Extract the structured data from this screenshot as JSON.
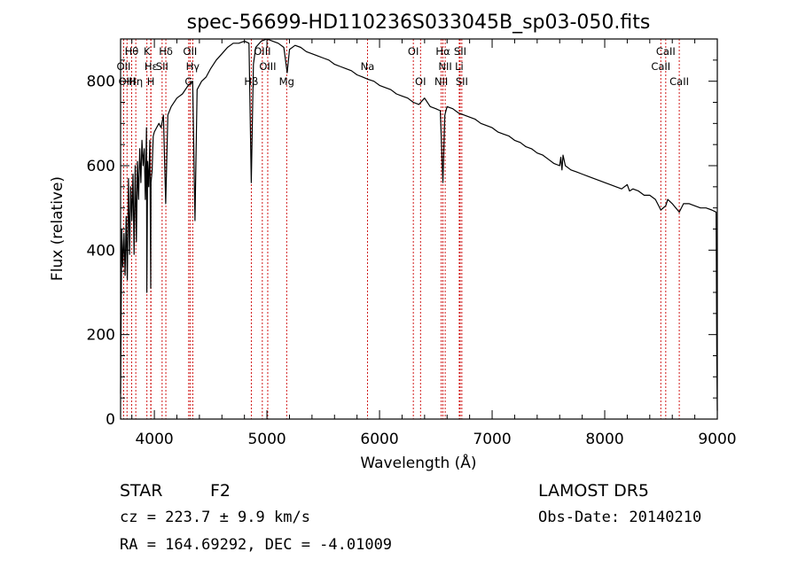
{
  "chart_data": {
    "type": "line",
    "title": "spec-56699-HD110236S033045B_sp03-050.fits",
    "xlabel": "Wavelength (Å)",
    "ylabel": "Flux (relative)",
    "xlim": [
      3700,
      9000
    ],
    "ylim": [
      0,
      900
    ],
    "x_ticks": [
      4000,
      5000,
      6000,
      7000,
      8000,
      9000
    ],
    "y_ticks": [
      0,
      200,
      400,
      600,
      800
    ],
    "grid": false,
    "series": [
      {
        "color": "#000000",
        "x": [
          3700,
          3710,
          3720,
          3730,
          3740,
          3750,
          3760,
          3770,
          3780,
          3790,
          3800,
          3810,
          3820,
          3830,
          3840,
          3850,
          3860,
          3870,
          3880,
          3890,
          3900,
          3910,
          3920,
          3930,
          3933,
          3940,
          3950,
          3960,
          3968,
          3970,
          3980,
          3990,
          4000,
          4020,
          4040,
          4060,
          4080,
          4101,
          4120,
          4150,
          4200,
          4250,
          4300,
          4340,
          4361,
          4380,
          4420,
          4460,
          4500,
          4550,
          4600,
          4650,
          4700,
          4750,
          4800,
          4840,
          4861,
          4880,
          4900,
          4950,
          5000,
          5050,
          5100,
          5150,
          5180,
          5200,
          5250,
          5300,
          5350,
          5400,
          5450,
          5500,
          5550,
          5600,
          5650,
          5700,
          5750,
          5800,
          5850,
          5893,
          5950,
          6000,
          6050,
          6100,
          6150,
          6200,
          6250,
          6300,
          6350,
          6400,
          6450,
          6500,
          6540,
          6563,
          6580,
          6600,
          6650,
          6700,
          6750,
          6800,
          6850,
          6900,
          6950,
          7000,
          7050,
          7100,
          7150,
          7200,
          7250,
          7300,
          7350,
          7400,
          7450,
          7500,
          7550,
          7600,
          7610,
          7620,
          7630,
          7650,
          7700,
          7750,
          7800,
          7850,
          7900,
          7950,
          8000,
          8050,
          8100,
          8150,
          8200,
          8220,
          8250,
          8300,
          8350,
          8400,
          8450,
          8498,
          8542,
          8560,
          8600,
          8662,
          8700,
          8750,
          8800,
          8850,
          8900,
          8950,
          8990,
          8995,
          9000
        ],
        "y": [
          60,
          450,
          360,
          440,
          340,
          480,
          330,
          570,
          390,
          550,
          470,
          580,
          390,
          600,
          420,
          610,
          520,
          640,
          560,
          660,
          600,
          640,
          520,
          690,
          300,
          610,
          550,
          660,
          310,
          560,
          590,
          670,
          680,
          690,
          700,
          690,
          720,
          510,
          720,
          740,
          760,
          770,
          790,
          800,
          470,
          780,
          800,
          810,
          830,
          850,
          865,
          880,
          890,
          890,
          895,
          890,
          560,
          840,
          880,
          895,
          900,
          895,
          890,
          880,
          820,
          875,
          885,
          880,
          870,
          865,
          860,
          855,
          850,
          840,
          835,
          830,
          825,
          815,
          810,
          805,
          800,
          790,
          785,
          780,
          770,
          765,
          760,
          750,
          745,
          760,
          740,
          735,
          730,
          560,
          720,
          740,
          735,
          725,
          720,
          715,
          710,
          700,
          695,
          690,
          680,
          675,
          670,
          660,
          655,
          645,
          640,
          630,
          625,
          615,
          605,
          600,
          620,
          590,
          625,
          600,
          590,
          585,
          580,
          575,
          570,
          565,
          560,
          555,
          550,
          545,
          555,
          540,
          545,
          540,
          530,
          530,
          520,
          495,
          505,
          520,
          510,
          490,
          510,
          510,
          505,
          500,
          500,
          495,
          490,
          150,
          20
        ]
      }
    ],
    "spectral_lines": [
      {
        "name": "Hθ",
        "x": 3798,
        "row": 1
      },
      {
        "name": "OII",
        "x": 3727,
        "row": 2
      },
      {
        "name": "OIII",
        "x": 3757,
        "row": 3
      },
      {
        "name": "Hη",
        "x": 3835,
        "row": 3
      },
      {
        "name": "K",
        "x": 3934,
        "row": 1
      },
      {
        "name": "Hε",
        "x": 3970,
        "row": 2
      },
      {
        "name": "H",
        "x": 3968,
        "row": 3
      },
      {
        "name": "Hδ",
        "x": 4102,
        "row": 1
      },
      {
        "name": "SII",
        "x": 4069,
        "row": 2
      },
      {
        "name": "OII",
        "x": 4317,
        "row": 1
      },
      {
        "name": "Hγ",
        "x": 4341,
        "row": 2
      },
      {
        "name": "G",
        "x": 4305,
        "row": 3
      },
      {
        "name": "OIII",
        "x": 4959,
        "row": 1
      },
      {
        "name": "OIII",
        "x": 5007,
        "row": 2
      },
      {
        "name": "Hβ",
        "x": 4861,
        "row": 3
      },
      {
        "name": "Mg",
        "x": 5175,
        "row": 3
      },
      {
        "name": "Na",
        "x": 5893,
        "row": 2
      },
      {
        "name": "OI",
        "x": 6300,
        "row": 1
      },
      {
        "name": "OI",
        "x": 6364,
        "row": 3
      },
      {
        "name": "Hα",
        "x": 6563,
        "row": 1
      },
      {
        "name": "NII",
        "x": 6583,
        "row": 2
      },
      {
        "name": "NII",
        "x": 6548,
        "row": 3
      },
      {
        "name": "SII",
        "x": 6716,
        "row": 1
      },
      {
        "name": "Li",
        "x": 6708,
        "row": 2
      },
      {
        "name": "SII",
        "x": 6731,
        "row": 3
      },
      {
        "name": "CaII",
        "x": 8542,
        "row": 1
      },
      {
        "name": "CaII",
        "x": 8498,
        "row": 2
      },
      {
        "name": "CaII",
        "x": 8662,
        "row": 3
      }
    ]
  },
  "info": {
    "object_class": "STAR",
    "subclass": "F2",
    "survey": "LAMOST DR5",
    "cz": "cz = 223.7 ± 9.9 km/s",
    "obs_date": "Obs-Date: 20140210",
    "coords": "RA = 164.69292, DEC =  -4.01009"
  },
  "colors": {
    "spectrum": "#000000",
    "line_markers": "#cc0000"
  }
}
